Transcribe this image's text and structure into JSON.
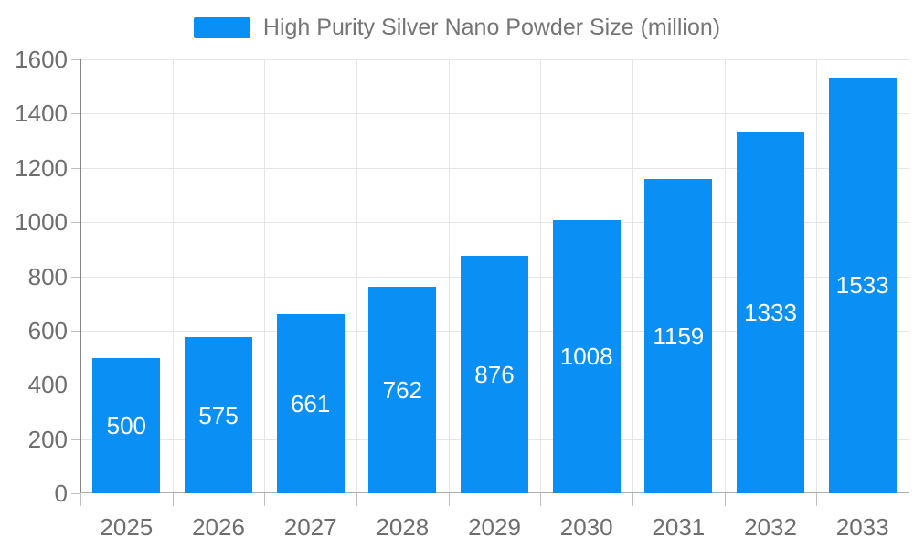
{
  "chart_data": {
    "type": "bar",
    "title": "High Purity Silver Nano Powder Size (million)",
    "categories": [
      "2025",
      "2026",
      "2027",
      "2028",
      "2029",
      "2030",
      "2031",
      "2032",
      "2033"
    ],
    "values": [
      500,
      575,
      661,
      762,
      876,
      1008,
      1159,
      1333,
      1533
    ],
    "xlabel": "",
    "ylabel": "",
    "ylim": [
      0,
      1600
    ],
    "ytick_step": 200,
    "y_ticks": [
      "0",
      "200",
      "400",
      "600",
      "800",
      "1000",
      "1200",
      "1400",
      "1600"
    ],
    "grid": true,
    "legend_position": "top-center",
    "bar_labels_inside": true
  },
  "legend": {
    "label": "High Purity Silver Nano Powder Size (million)"
  },
  "colors": {
    "bar": "#0a8ff5",
    "bar_label_text": "#ffffff",
    "axis_label_text": "#6e6e6e",
    "legend_text": "#757575",
    "gridline": "#e6e6e6",
    "y_axis_line": "#878787",
    "x_axis_line": "#adadad",
    "background": "#ffffff"
  }
}
